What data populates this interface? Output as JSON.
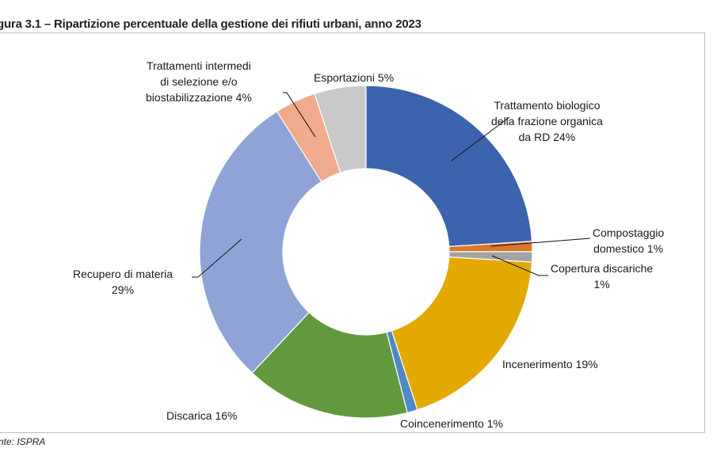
{
  "title": "gura 3.1 – Ripartizione percentuale della gestione dei rifiuti urbani, anno 2023",
  "source": "nte: ISPRA",
  "chart_data": {
    "type": "pie",
    "variant": "donut",
    "title": "gura 3.1 – Ripartizione percentuale della gestione dei rifiuti urbani, anno 2023",
    "slices": [
      {
        "name": "Trattamento biologico della frazione organica da RD",
        "value": 24,
        "color": "#3c63ae",
        "label_lines": [
          "Trattamento biologico",
          "della frazione organica",
          "da RD 24%"
        ]
      },
      {
        "name": "Compostaggio domestico",
        "value": 1,
        "color": "#d9782d",
        "label_lines": [
          "Compostaggio",
          "domestico 1%"
        ]
      },
      {
        "name": "Copertura discariche",
        "value": 1,
        "color": "#a3a3a3",
        "label_lines": [
          "Copertura discariche",
          "1%"
        ]
      },
      {
        "name": "Incenerimento",
        "value": 19,
        "color": "#e3a900",
        "label_lines": [
          "Incenerimento 19%"
        ]
      },
      {
        "name": "Coincenerimento",
        "value": 1,
        "color": "#4f88c6",
        "label_lines": [
          "Coincenerimento 1%"
        ]
      },
      {
        "name": "Discarica",
        "value": 16,
        "color": "#62993e",
        "label_lines": [
          "Discarica 16%"
        ]
      },
      {
        "name": "Recupero di materia",
        "value": 29,
        "color": "#8fa3d6",
        "label_lines": [
          "Recupero di materia",
          "29%"
        ]
      },
      {
        "name": "Trattamenti intermedi di selezione e/o biostabilizzazione",
        "value": 4,
        "color": "#f0aa8c",
        "label_lines": [
          "Trattamenti intermedi",
          "di selezione e/o",
          "biostabilizzazione  4%"
        ]
      },
      {
        "name": "Esportazioni",
        "value": 5,
        "color": "#c9c9c9",
        "label_lines": [
          "Esportazioni 5%"
        ]
      }
    ],
    "legend": "none",
    "start_angle": "top",
    "direction": "clockwise"
  }
}
